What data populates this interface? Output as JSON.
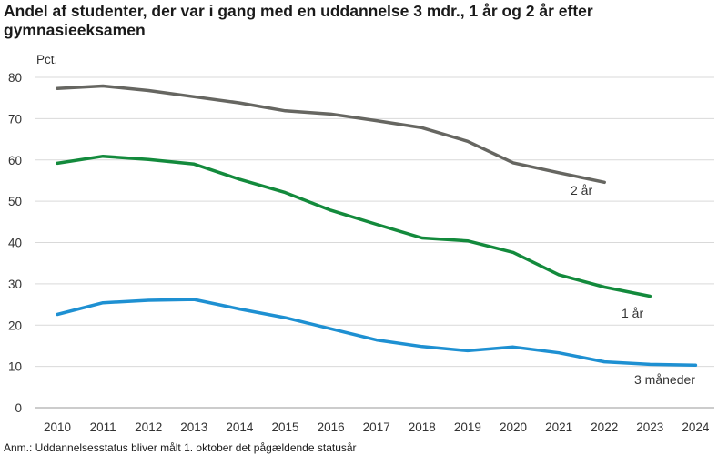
{
  "title": "Andel af studenter, der var i gang med en uddannelse 3 mdr., 1 år og 2 år efter gymnasieeksamen",
  "note": "Anm.: Uddannelsesstatus bliver målt 1. oktober det pågældende statusår",
  "chart_data": {
    "type": "line",
    "title": "Andel af studenter, der var i gang med en uddannelse 3 mdr., 1 år og 2 år efter gymnasieeksamen",
    "ylabel": "Pct.",
    "xlabel": "",
    "ylim": [
      0,
      80
    ],
    "yticks": [
      0,
      10,
      20,
      30,
      40,
      50,
      60,
      70,
      80
    ],
    "grid": true,
    "categories": [
      "2010",
      "2011",
      "2012",
      "2013",
      "2014",
      "2015",
      "2016",
      "2017",
      "2018",
      "2019",
      "2020",
      "2021",
      "2022",
      "2023",
      "2024"
    ],
    "series": [
      {
        "name": "2 år",
        "color": "#666661",
        "values": [
          77.3,
          77.9,
          76.8,
          75.3,
          73.8,
          71.9,
          71.1,
          69.5,
          67.8,
          64.5,
          59.3,
          56.9,
          54.6,
          null,
          null
        ]
      },
      {
        "name": "1 år",
        "color": "#138a3c",
        "values": [
          59.2,
          60.9,
          60.1,
          59.0,
          55.3,
          52.1,
          47.8,
          44.4,
          41.1,
          40.4,
          37.6,
          32.2,
          29.2,
          27.0,
          null
        ]
      },
      {
        "name": "3 måneder",
        "color": "#1e90d2",
        "values": [
          22.6,
          25.4,
          26.0,
          26.2,
          23.9,
          21.8,
          19.1,
          16.4,
          14.8,
          13.8,
          14.7,
          13.3,
          11.1,
          10.5,
          10.3
        ]
      }
    ]
  }
}
